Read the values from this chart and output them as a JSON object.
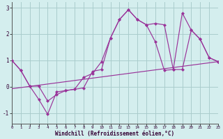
{
  "xlabel": "Windchill (Refroidissement éolien,°C)",
  "bg_color": "#d4eeee",
  "line_color": "#993399",
  "grid_color": "#aacccc",
  "xlim": [
    0,
    23
  ],
  "ylim": [
    -1.4,
    3.2
  ],
  "yticks": [
    -1,
    0,
    1,
    2,
    3
  ],
  "xticks": [
    0,
    1,
    2,
    3,
    4,
    5,
    6,
    7,
    8,
    9,
    10,
    11,
    12,
    13,
    14,
    15,
    16,
    17,
    18,
    19,
    20,
    21,
    22,
    23
  ],
  "line1_x": [
    0,
    1,
    2,
    3,
    4,
    5,
    6,
    7,
    8,
    9,
    10,
    11,
    12,
    13,
    14,
    15,
    16,
    17,
    18,
    19,
    20,
    21,
    22,
    23
  ],
  "line1_y": [
    1.0,
    0.62,
    0.02,
    -0.48,
    -1.05,
    -0.2,
    -0.15,
    -0.1,
    -0.05,
    0.58,
    0.65,
    1.85,
    2.55,
    2.92,
    2.55,
    2.35,
    1.7,
    0.62,
    0.65,
    2.8,
    2.15,
    1.8,
    1.1,
    0.95
  ],
  "line2_x": [
    0,
    1,
    2,
    3,
    4,
    5,
    6,
    7,
    8,
    9,
    10,
    11,
    12,
    13,
    14,
    15,
    16,
    17,
    18,
    19,
    20,
    21,
    22,
    23
  ],
  "line2_y": [
    1.0,
    0.62,
    0.02,
    0.02,
    -0.55,
    -0.3,
    -0.15,
    -0.1,
    0.35,
    0.5,
    0.95,
    1.85,
    2.55,
    2.92,
    2.55,
    2.35,
    2.4,
    2.35,
    0.65,
    0.65,
    2.15,
    1.8,
    1.1,
    0.95
  ],
  "line3_x": [
    0,
    23
  ],
  "line3_y": [
    -0.08,
    0.95
  ]
}
